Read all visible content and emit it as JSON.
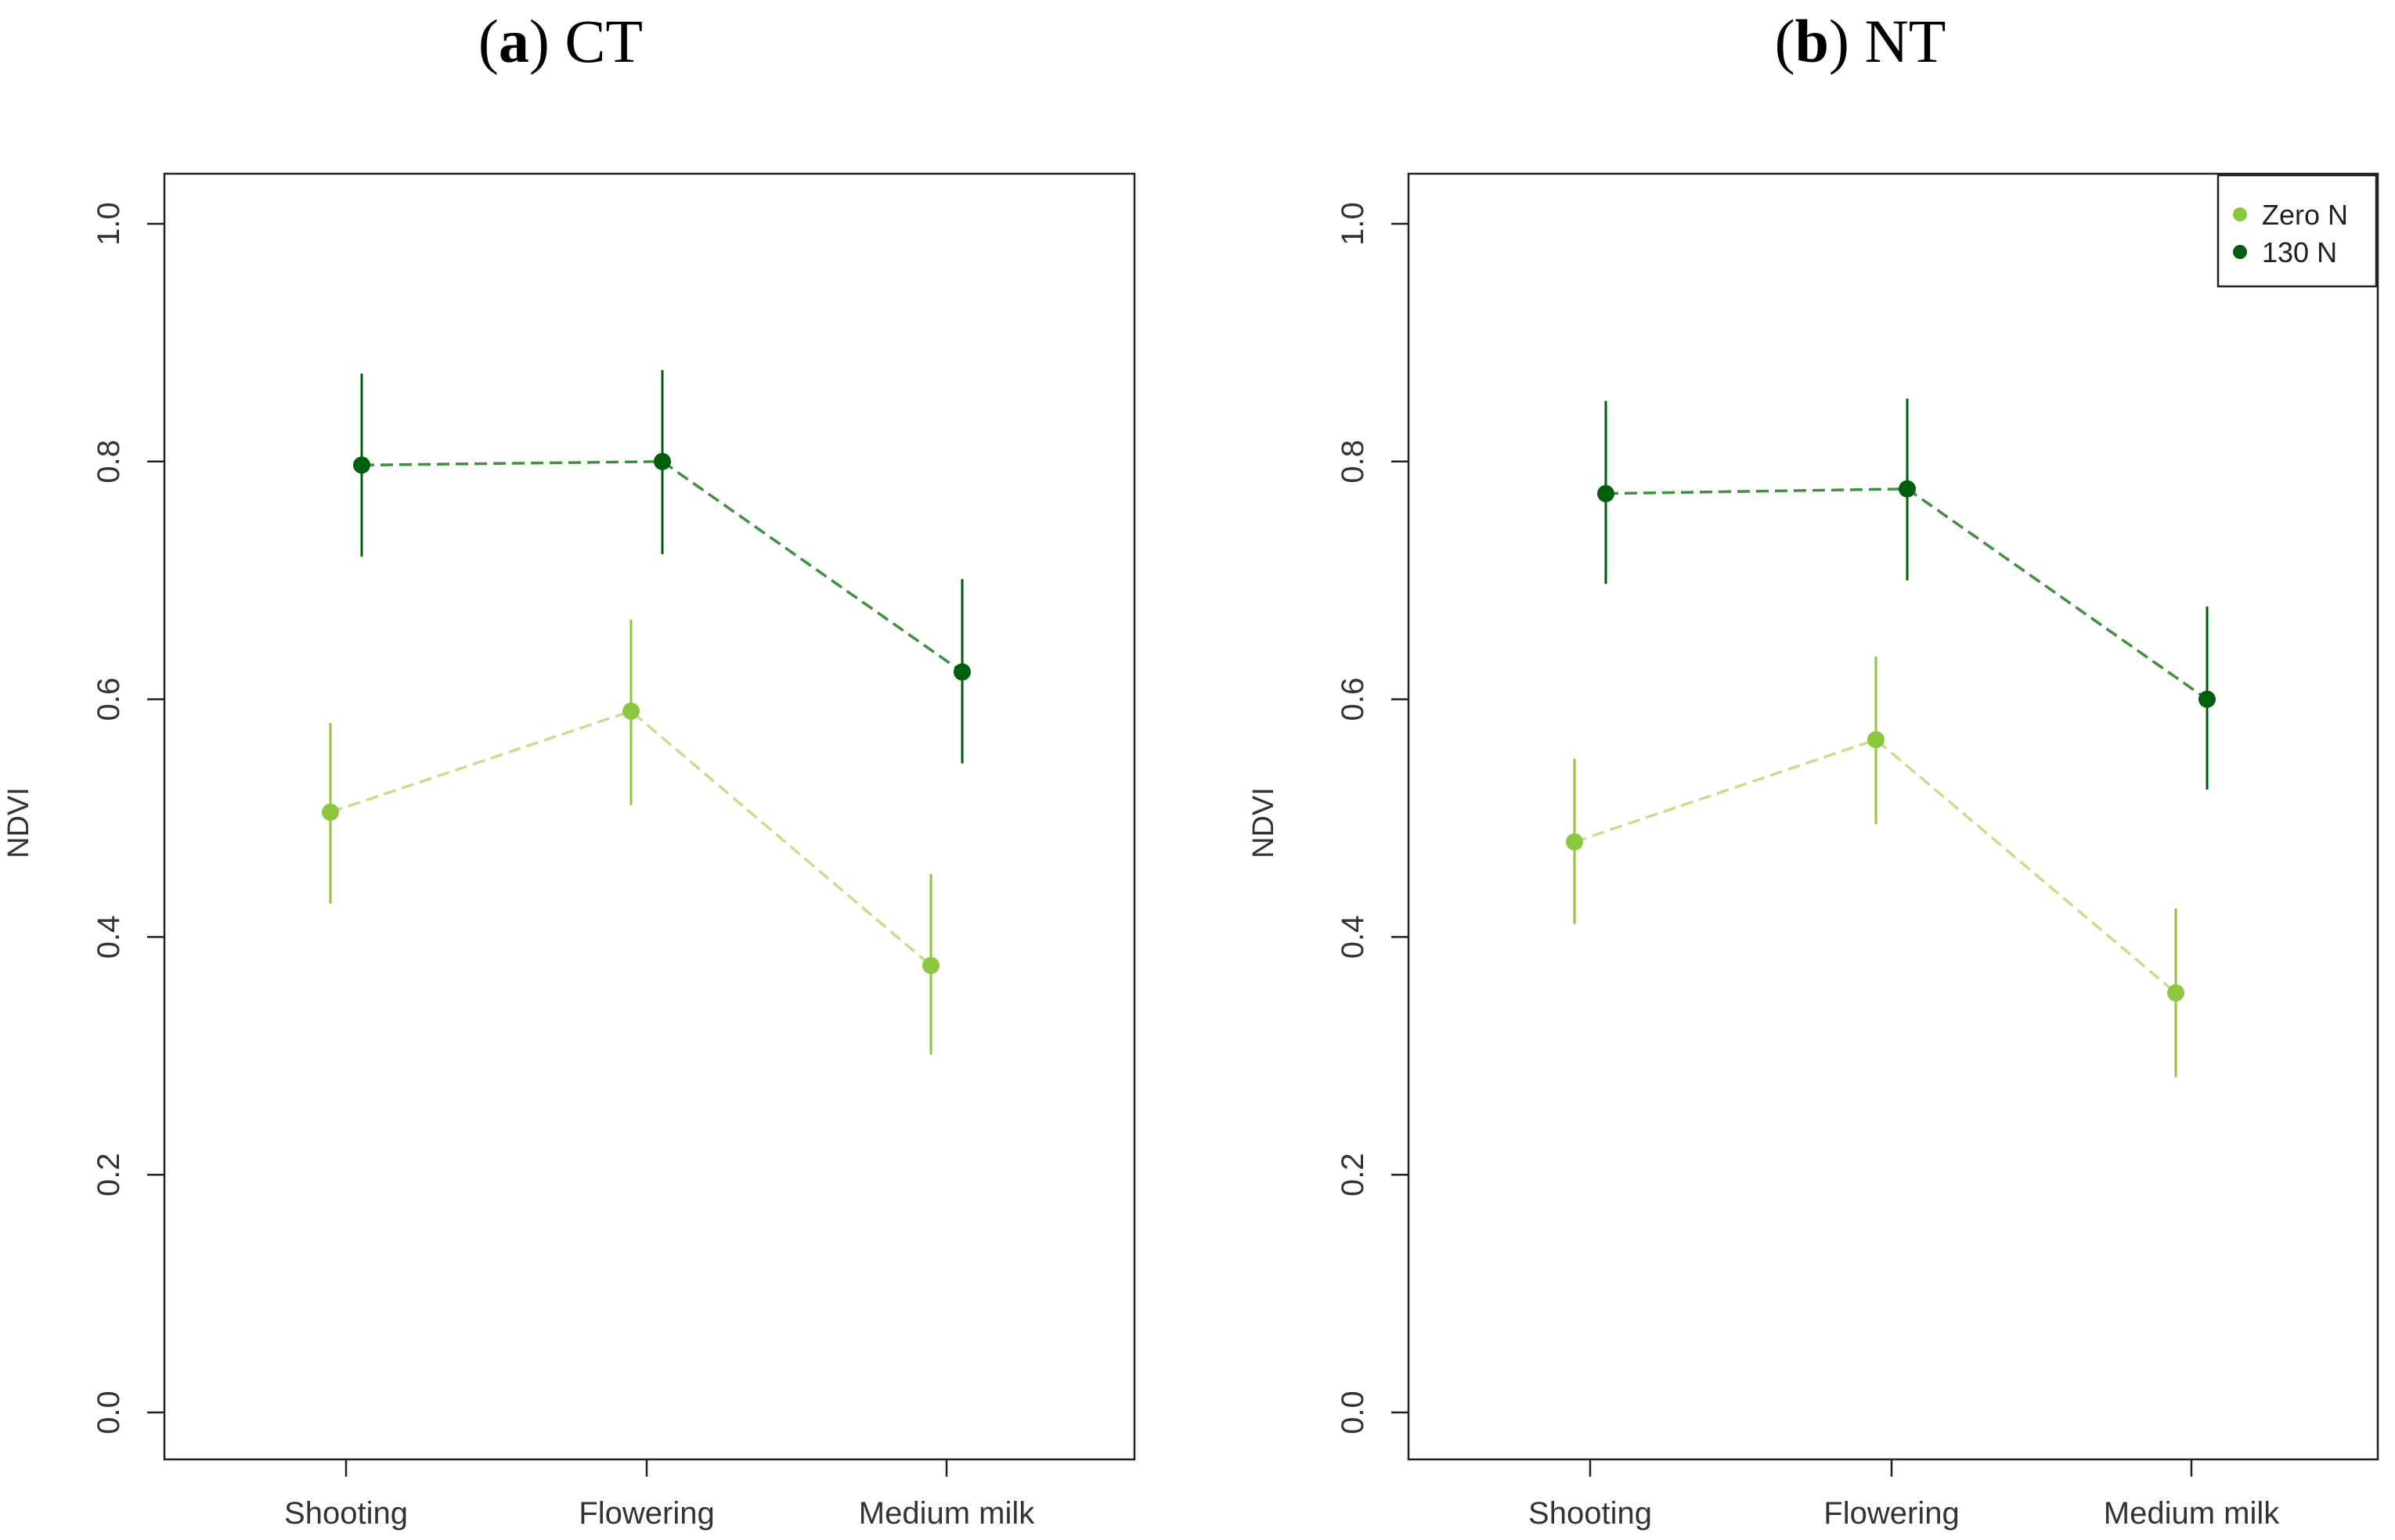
{
  "chart_data": [
    {
      "type": "line",
      "panel_letter": "a",
      "panel_name": "CT",
      "title": "(a) CT",
      "categories": [
        "Shooting",
        "Flowering",
        "Medium milk"
      ],
      "ylabel": "NDVI",
      "xlabel": "",
      "ylim": [
        0.0,
        1.0
      ],
      "yticks": [
        "0.0",
        "0.2",
        "0.4",
        "0.6",
        "0.8",
        "1.0"
      ],
      "series": [
        {
          "name": "Zero N",
          "color": "#8dc63f",
          "line_color": "#c5e08a",
          "values": [
            0.505,
            0.59,
            0.376
          ],
          "err_low": [
            0.428,
            0.511,
            0.301
          ],
          "err_high": [
            0.58,
            0.667,
            0.453
          ]
        },
        {
          "name": "130 N",
          "color": "#005f0e",
          "line_color": "#3f8f3f",
          "values": [
            0.797,
            0.8,
            0.623
          ],
          "err_low": [
            0.72,
            0.722,
            0.546
          ],
          "err_high": [
            0.874,
            0.877,
            0.701
          ]
        }
      ],
      "legend": null
    },
    {
      "type": "line",
      "panel_letter": "b",
      "panel_name": "NT",
      "title": "(b) NT",
      "categories": [
        "Shooting",
        "Flowering",
        "Medium milk"
      ],
      "ylabel": "NDVI",
      "xlabel": "",
      "ylim": [
        0.0,
        1.0
      ],
      "yticks": [
        "0.0",
        "0.2",
        "0.4",
        "0.6",
        "0.8",
        "1.0"
      ],
      "series": [
        {
          "name": "Zero N",
          "color": "#8dc63f",
          "line_color": "#c5e08a",
          "values": [
            0.48,
            0.566,
            0.353
          ],
          "err_low": [
            0.411,
            0.495,
            0.282
          ],
          "err_high": [
            0.55,
            0.636,
            0.424
          ]
        },
        {
          "name": "130 N",
          "color": "#005f0e",
          "line_color": "#3f8f3f",
          "values": [
            0.773,
            0.777,
            0.6
          ],
          "err_low": [
            0.697,
            0.7,
            0.524
          ],
          "err_high": [
            0.851,
            0.853,
            0.678
          ]
        }
      ],
      "legend": {
        "position": "top-right",
        "entries": [
          "Zero N",
          "130 N"
        ]
      }
    }
  ]
}
